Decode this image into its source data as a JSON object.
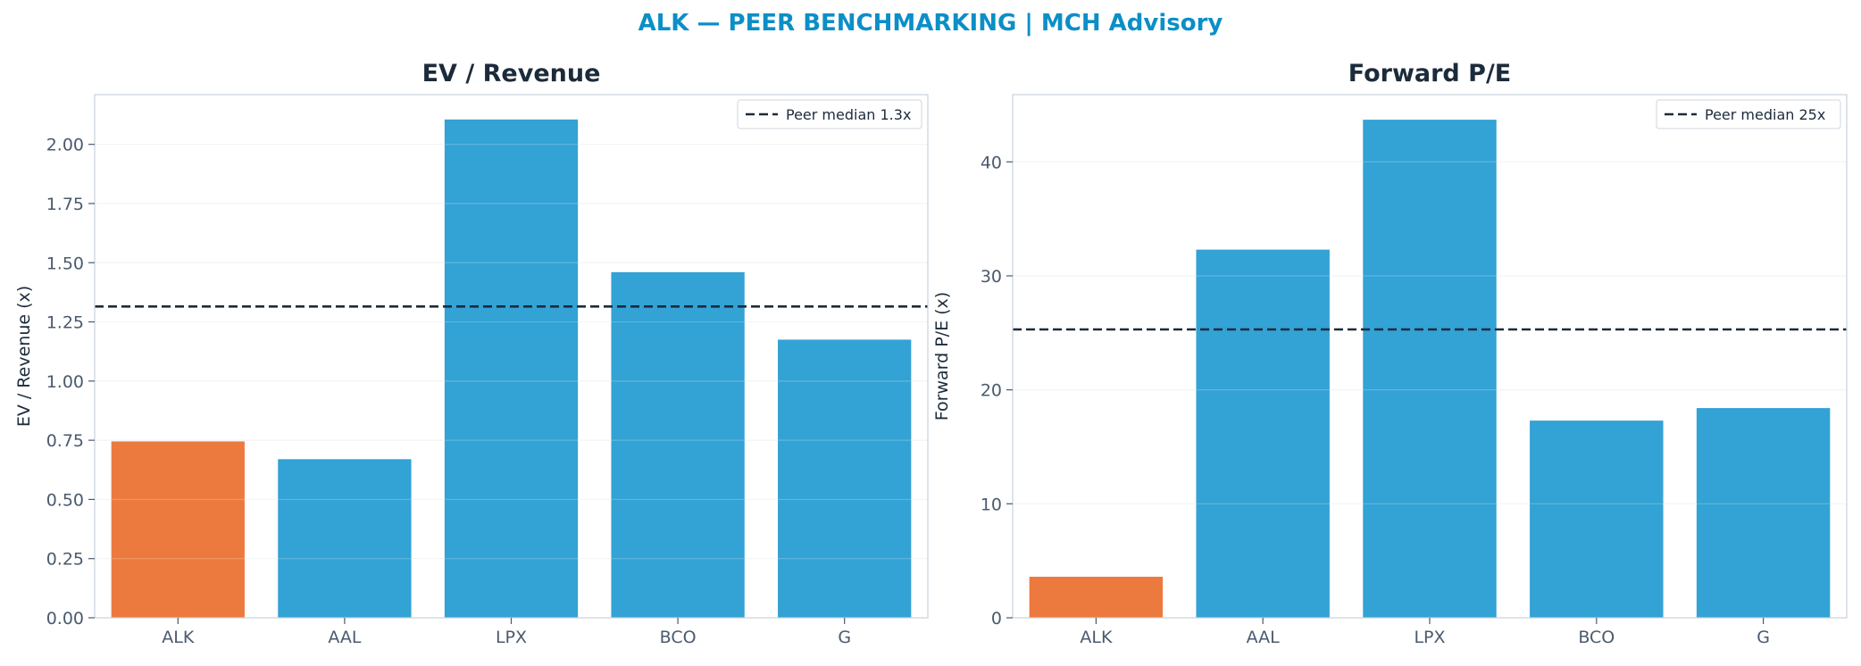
{
  "suptitle": "ALK — PEER BENCHMARKING | MCH Advisory",
  "colors": {
    "title": "#0a8fc7",
    "panel_title": "#1c2b3b",
    "tick": "#4a5a6e",
    "highlight_bar": "#ec7a3e",
    "peer_bar": "#33a2d4",
    "median_line": "#1c2b3b",
    "axis_border": "#c9d3dd",
    "grid": "#eef2f5"
  },
  "chart_data": [
    {
      "type": "bar",
      "title": "EV / Revenue",
      "xlabel": "",
      "ylabel": "EV / Revenue (x)",
      "categories": [
        "ALK",
        "AAL",
        "LPX",
        "BCO",
        "G"
      ],
      "values": [
        0.745,
        0.67,
        2.105,
        1.46,
        1.175
      ],
      "highlight": "ALK",
      "ylim": [
        0,
        2.21
      ],
      "yticks": [
        0,
        0.25,
        0.5,
        0.75,
        1.0,
        1.25,
        1.5,
        1.75,
        2.0
      ],
      "ytick_labels": [
        "0.00",
        "0.25",
        "0.50",
        "0.75",
        "1.00",
        "1.25",
        "1.50",
        "1.75",
        "2.00"
      ],
      "reference_line": {
        "value": 1.315,
        "style": "dashed",
        "label": "Peer median 1.3x"
      },
      "legend_position": "top-right",
      "grid": true
    },
    {
      "type": "bar",
      "title": "Forward P/E",
      "xlabel": "",
      "ylabel": "Forward P/E (x)",
      "categories": [
        "ALK",
        "AAL",
        "LPX",
        "BCO",
        "G"
      ],
      "values": [
        3.6,
        32.3,
        43.7,
        17.3,
        18.4
      ],
      "highlight": "ALK",
      "ylim": [
        0,
        45.9
      ],
      "yticks": [
        0,
        10,
        20,
        30,
        40
      ],
      "ytick_labels": [
        "0",
        "10",
        "20",
        "30",
        "40"
      ],
      "reference_line": {
        "value": 25.3,
        "style": "dashed",
        "label": "Peer median 25x"
      },
      "legend_position": "top-right",
      "grid": true
    }
  ]
}
